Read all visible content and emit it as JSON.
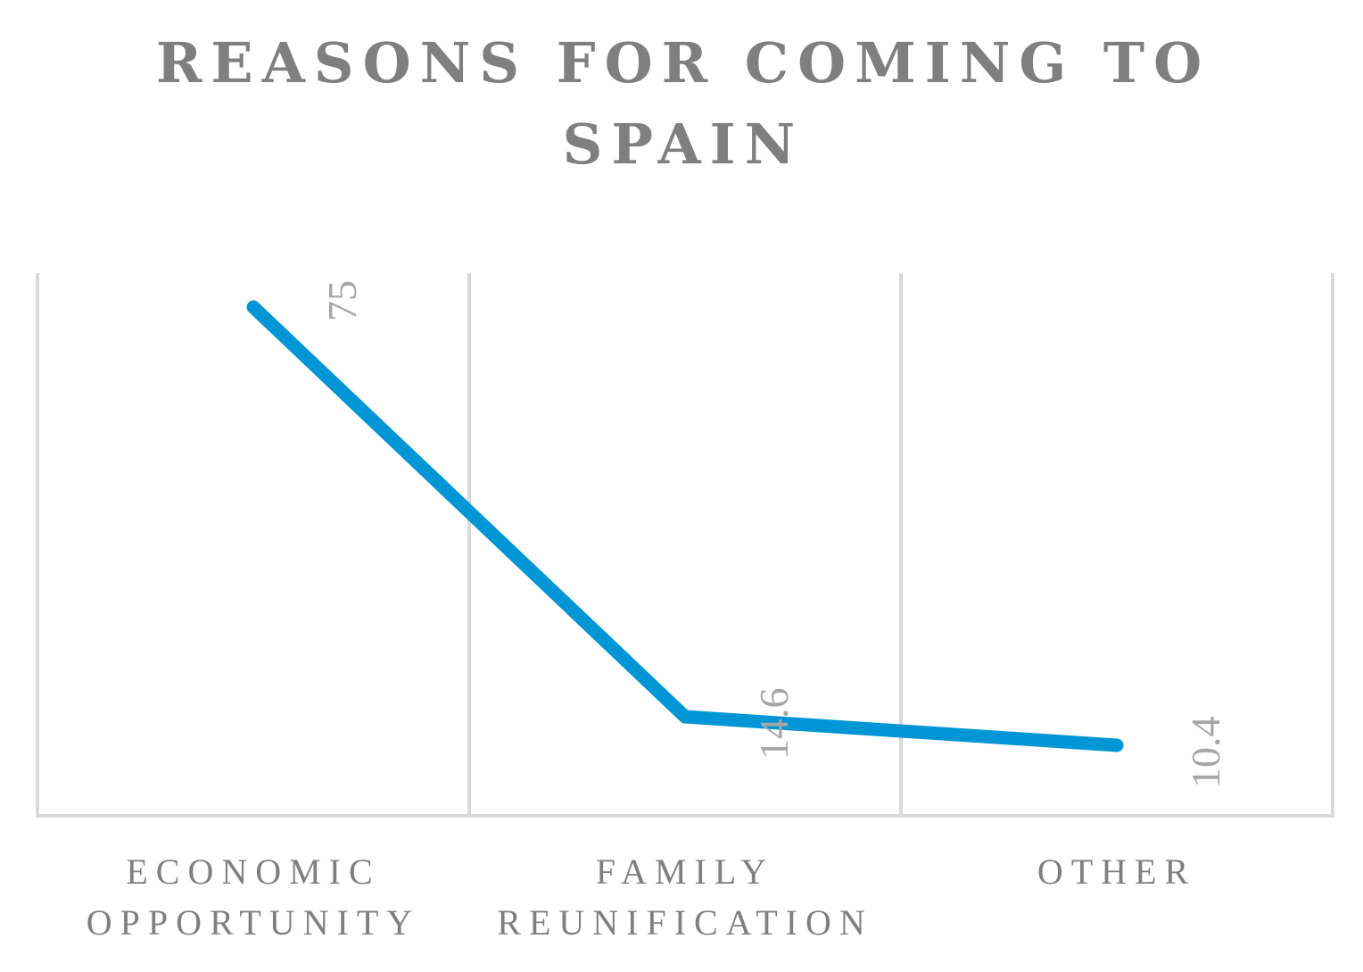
{
  "chart_data": {
    "type": "line",
    "title_lines": [
      "REASONS FOR COMING TO",
      "SPAIN"
    ],
    "categories": [
      {
        "lines": [
          "ECONOMIC",
          "OPPORTUNITY"
        ]
      },
      {
        "lines": [
          "FAMILY",
          "REUNIFICATION"
        ]
      },
      {
        "lines": [
          "OTHER"
        ]
      }
    ],
    "values": [
      75,
      14.6,
      10.4
    ],
    "data_labels": [
      "75",
      "14.6",
      "10.4"
    ],
    "ylim": [
      0,
      80
    ],
    "grid": "vertical",
    "legend": "none",
    "line_color": "#0096d6",
    "grid_color": "#d9d9d9"
  }
}
